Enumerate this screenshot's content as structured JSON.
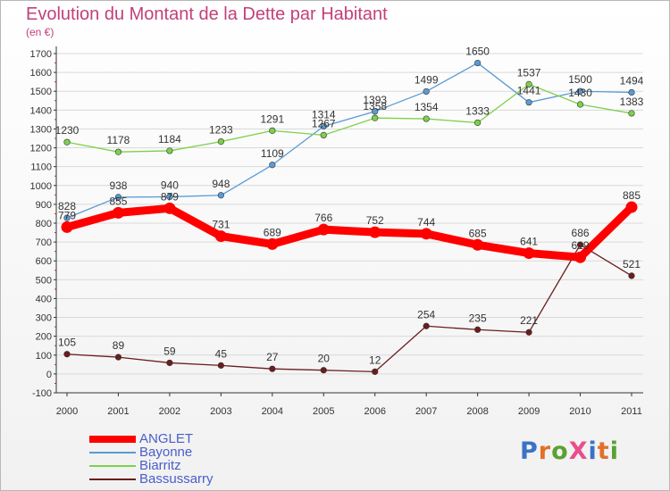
{
  "title": "Evolution du Montant de la Dette par Habitant",
  "subtitle": "(en €)",
  "logo": {
    "text": "ProXiti",
    "colors": [
      "#3a73c5",
      "#e2702a",
      "#5aa134",
      "#e84f8c",
      "#3a73c5",
      "#e2702a",
      "#5aa134"
    ]
  },
  "chart_data": {
    "type": "line",
    "title": "Evolution du Montant de la Dette par Habitant",
    "subtitle": "(en €)",
    "xlabel": "",
    "ylabel": "",
    "x": [
      "2000",
      "2001",
      "2002",
      "2003",
      "2004",
      "2005",
      "2006",
      "2007",
      "2008",
      "2009",
      "2010",
      "2011"
    ],
    "ylim": [
      -100,
      1700
    ],
    "yticks": [
      "-100",
      "0",
      "100",
      "200",
      "300",
      "400",
      "500",
      "600",
      "700",
      "800",
      "900",
      "1000",
      "1100",
      "1200",
      "1300",
      "1400",
      "1500",
      "1600",
      "1700"
    ],
    "grid": "horizontal",
    "legend": "bottom-left",
    "series": [
      {
        "name": "ANGLET",
        "color": "#ff0000",
        "values": [
          779,
          855,
          879,
          731,
          689,
          766,
          752,
          744,
          685,
          641,
          619,
          885
        ],
        "labels": [
          "779",
          "855",
          "879",
          "731",
          "689",
          "766",
          "752",
          "744",
          "685",
          "641",
          "619",
          "885"
        ]
      },
      {
        "name": "Bayonne",
        "color": "#5a9bd4",
        "values": [
          828,
          938,
          940,
          948,
          1109,
          1314,
          1393,
          1499,
          1650,
          1441,
          1500,
          1494
        ],
        "labels": [
          "828",
          "938",
          "940",
          "948",
          "1109",
          "1314",
          "1393",
          "1499",
          "1650",
          "1441",
          "1500",
          "1494"
        ]
      },
      {
        "name": "Biarritz",
        "color": "#7ed04b",
        "values": [
          1230,
          1178,
          1184,
          1233,
          1291,
          1267,
          1358,
          1354,
          1333,
          1537,
          1430,
          1383
        ],
        "labels": [
          "1230",
          "1178",
          "1184",
          "1233",
          "1291",
          "1267",
          "1358",
          "1354",
          "1333",
          "1537",
          "1430",
          "1383"
        ]
      },
      {
        "name": "Bassussarry",
        "color": "#6b1d1d",
        "values": [
          105,
          89,
          59,
          45,
          27,
          20,
          12,
          254,
          235,
          221,
          686,
          521
        ],
        "labels": [
          "105",
          "89",
          "59",
          "45",
          "27",
          "20",
          "12",
          "254",
          "235",
          "221",
          "686",
          "521"
        ]
      }
    ]
  }
}
